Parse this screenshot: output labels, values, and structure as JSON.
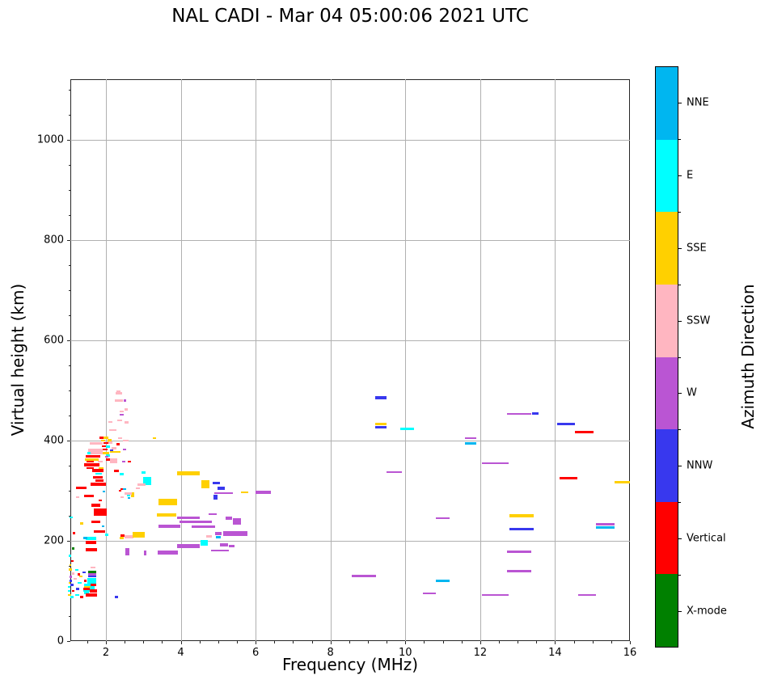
{
  "chart_data": {
    "type": "scatter",
    "title": "NAL CADI - Mar 04 05:00:06 2021 UTC",
    "xlabel": "Frequency (MHz)",
    "ylabel": "Virtual height (km)",
    "xlim": [
      1.05,
      16
    ],
    "ylim": [
      0,
      1121
    ],
    "xticks": [
      2,
      4,
      6,
      8,
      10,
      12,
      14,
      16
    ],
    "yticks": [
      0,
      200,
      400,
      600,
      800,
      1000
    ],
    "x_minor_step": 0.5,
    "y_minor_step": 50,
    "grid": true,
    "colorbar": {
      "label": "Azimuth Direction",
      "order": "top-to-bottom",
      "categories": [
        {
          "label": "NNE",
          "color": "#00b6f0"
        },
        {
          "label": "E",
          "color": "#00ffff"
        },
        {
          "label": "SSE",
          "color": "#ffd000"
        },
        {
          "label": "SSW",
          "color": "#ffb6c1"
        },
        {
          "label": "W",
          "color": "#ba55d3"
        },
        {
          "label": "NNW",
          "color": "#3838ee"
        },
        {
          "label": "Vertical",
          "color": "#ff0000"
        },
        {
          "label": "X-mode",
          "color": "#008000"
        }
      ]
    },
    "points_format": [
      "freq_MHz",
      "height_km",
      "direction",
      "width_MHz",
      "thickness_km"
    ],
    "points": [
      [
        8.9,
        130,
        "W",
        0.65,
        5
      ],
      [
        9.35,
        485,
        "NNW",
        0.3,
        7
      ],
      [
        9.35,
        433,
        "SSE",
        0.3,
        5
      ],
      [
        9.35,
        427,
        "NNW",
        0.3,
        5
      ],
      [
        10.05,
        424,
        "E",
        0.35,
        5
      ],
      [
        9.7,
        337,
        "W",
        0.4,
        4
      ],
      [
        10.65,
        95,
        "W",
        0.35,
        4
      ],
      [
        11.0,
        245,
        "W",
        0.38,
        4
      ],
      [
        11.0,
        120,
        "NNE",
        0.38,
        5
      ],
      [
        11.75,
        405,
        "W",
        0.3,
        4
      ],
      [
        11.75,
        394,
        "NNE",
        0.3,
        4
      ],
      [
        12.4,
        355,
        "W",
        0.72,
        4
      ],
      [
        12.4,
        92,
        "W",
        0.72,
        4
      ],
      [
        13.05,
        454,
        "W",
        0.65,
        3
      ],
      [
        13.48,
        454,
        "NNW",
        0.17,
        5
      ],
      [
        13.1,
        250,
        "SSE",
        0.65,
        5
      ],
      [
        13.1,
        224,
        "NNW",
        0.65,
        5
      ],
      [
        13.05,
        178,
        "W",
        0.65,
        5
      ],
      [
        13.05,
        140,
        "W",
        0.65,
        5
      ],
      [
        14.3,
        433,
        "NNW",
        0.48,
        6
      ],
      [
        14.78,
        417,
        "Vertical",
        0.48,
        6
      ],
      [
        14.35,
        325,
        "Vertical",
        0.48,
        5
      ],
      [
        14.85,
        92,
        "W",
        0.48,
        4
      ],
      [
        15.35,
        233,
        "W",
        0.5,
        5
      ],
      [
        15.35,
        227,
        "NNE",
        0.5,
        5
      ],
      [
        15.8,
        317,
        "SSE",
        0.4,
        5
      ],
      [
        3.1,
        320,
        "E",
        0.22,
        16
      ],
      [
        4.2,
        335,
        "SSE",
        0.6,
        9
      ],
      [
        4.65,
        313,
        "SSE",
        0.22,
        15
      ],
      [
        4.95,
        315,
        "NNW",
        0.2,
        4
      ],
      [
        5.08,
        305,
        "NNW",
        0.18,
        7
      ],
      [
        5.15,
        295,
        "W",
        0.5,
        4
      ],
      [
        5.7,
        297,
        "SSE",
        0.2,
        3
      ],
      [
        4.93,
        287,
        "NNW",
        0.12,
        9
      ],
      [
        6.2,
        297,
        "W",
        0.42,
        6
      ],
      [
        3.65,
        277,
        "SSE",
        0.5,
        13
      ],
      [
        3.62,
        252,
        "SSE",
        0.5,
        7
      ],
      [
        4.85,
        253,
        "W",
        0.2,
        4
      ],
      [
        4.2,
        246,
        "W",
        0.6,
        5
      ],
      [
        5.28,
        245,
        "W",
        0.18,
        7
      ],
      [
        5.5,
        238,
        "W",
        0.22,
        13
      ],
      [
        4.4,
        238,
        "W",
        0.85,
        6
      ],
      [
        3.7,
        229,
        "W",
        0.57,
        7
      ],
      [
        4.6,
        228,
        "W",
        0.62,
        5
      ],
      [
        5.0,
        214,
        "W",
        0.18,
        6
      ],
      [
        4.75,
        209,
        "SSW",
        0.16,
        4
      ],
      [
        5.0,
        207,
        "NNE",
        0.14,
        4
      ],
      [
        5.45,
        214,
        "W",
        0.65,
        10
      ],
      [
        4.62,
        196,
        "E",
        0.2,
        11
      ],
      [
        4.2,
        190,
        "W",
        0.6,
        8
      ],
      [
        5.15,
        192,
        "W",
        0.22,
        6
      ],
      [
        5.35,
        190,
        "W",
        0.15,
        5
      ],
      [
        3.65,
        176,
        "W",
        0.55,
        8
      ],
      [
        5.05,
        181,
        "W",
        0.48,
        4
      ],
      [
        3.3,
        405,
        "SSE",
        0.1,
        4
      ],
      [
        2.33,
        499,
        "SSW",
        0.1,
        3
      ],
      [
        2.35,
        494,
        "SSW",
        0.16,
        4
      ],
      [
        2.35,
        480,
        "SSW",
        0.22,
        4
      ],
      [
        2.51,
        480,
        "W",
        0.08,
        4
      ],
      [
        2.54,
        462,
        "SSW",
        0.1,
        4
      ],
      [
        2.42,
        458,
        "SSW",
        0.1,
        4
      ],
      [
        2.42,
        452,
        "W",
        0.1,
        4
      ],
      [
        2.37,
        440,
        "SSW",
        0.12,
        4
      ],
      [
        2.55,
        436,
        "SSW",
        0.12,
        4
      ],
      [
        2.12,
        437,
        "SSW",
        0.1,
        3
      ],
      [
        2.18,
        421,
        "SSW",
        0.2,
        4
      ],
      [
        2.38,
        405,
        "SSW",
        0.1,
        4
      ],
      [
        2.53,
        400,
        "SSW",
        0.14,
        4
      ],
      [
        2.1,
        400,
        "SSE",
        0.1,
        6
      ],
      [
        2.32,
        393,
        "Vertical",
        0.08,
        4
      ],
      [
        2.22,
        385,
        "SSW",
        0.12,
        4
      ],
      [
        2.5,
        382,
        "W",
        0.07,
        3
      ],
      [
        2.25,
        377,
        "SSE",
        0.3,
        4
      ],
      [
        2.05,
        370,
        "E",
        0.1,
        5
      ],
      [
        2.2,
        360,
        "SSW",
        0.2,
        10
      ],
      [
        2.48,
        358,
        "W",
        0.08,
        4
      ],
      [
        2.62,
        358,
        "Vertical",
        0.08,
        4
      ],
      [
        2.28,
        340,
        "Vertical",
        0.14,
        5
      ],
      [
        2.42,
        333,
        "E",
        0.12,
        4
      ],
      [
        2.85,
        305,
        "SSW",
        0.12,
        4
      ],
      [
        2.38,
        300,
        "Vertical",
        0.08,
        4
      ],
      [
        2.72,
        292,
        "SSE",
        0.08,
        9
      ],
      [
        2.6,
        290,
        "E",
        0.08,
        4
      ],
      [
        2.62,
        285,
        "NNE",
        0.06,
        3
      ],
      [
        2.43,
        287,
        "SSW",
        0.08,
        4
      ],
      [
        2.43,
        303,
        "Vertical",
        0.08,
        4
      ],
      [
        2.5,
        303,
        "NNE",
        0.08,
        4
      ],
      [
        1.87,
        344,
        "SSE",
        0.12,
        4
      ],
      [
        1.78,
        340,
        "Vertical",
        0.3,
        6
      ],
      [
        1.8,
        334,
        "E",
        0.18,
        4
      ],
      [
        1.78,
        327,
        "Vertical",
        0.25,
        5
      ],
      [
        1.82,
        320,
        "Vertical",
        0.22,
        5
      ],
      [
        1.8,
        313,
        "Vertical",
        0.4,
        6
      ],
      [
        1.55,
        290,
        "Vertical",
        0.25,
        5
      ],
      [
        2.6,
        295,
        "SSW",
        0.2,
        5
      ],
      [
        2.95,
        312,
        "SSW",
        0.2,
        6
      ],
      [
        3.0,
        337,
        "E",
        0.1,
        5
      ],
      [
        1.85,
        281,
        "Vertical",
        0.1,
        4
      ],
      [
        1.73,
        271,
        "Vertical",
        0.22,
        8
      ],
      [
        1.07,
        247,
        "E",
        0.07,
        4
      ],
      [
        1.35,
        235,
        "SSE",
        0.08,
        4
      ],
      [
        1.73,
        238,
        "Vertical",
        0.22,
        6
      ],
      [
        1.88,
        405,
        "Vertical",
        0.12,
        5
      ],
      [
        2.0,
        406,
        "SSE",
        0.12,
        5
      ],
      [
        1.92,
        400,
        "SSE",
        0.1,
        4
      ],
      [
        1.75,
        395,
        "SSW",
        0.35,
        5
      ],
      [
        2.0,
        395,
        "Vertical",
        0.14,
        4
      ],
      [
        2.12,
        396,
        "SSW",
        0.1,
        4
      ],
      [
        2.05,
        388,
        "E",
        0.1,
        4
      ],
      [
        1.95,
        389,
        "Vertical",
        0.1,
        4
      ],
      [
        1.72,
        378,
        "SSW",
        0.4,
        12
      ],
      [
        1.98,
        382,
        "Vertical",
        0.12,
        4
      ],
      [
        2.15,
        380,
        "NNW",
        0.07,
        3
      ],
      [
        2.0,
        375,
        "SSE",
        0.18,
        4
      ],
      [
        1.55,
        375,
        "E",
        0.1,
        4
      ],
      [
        1.65,
        368,
        "Vertical",
        0.4,
        5
      ],
      [
        2.02,
        368,
        "W",
        0.08,
        3
      ],
      [
        1.62,
        362,
        "SSE",
        0.38,
        4
      ],
      [
        2.05,
        362,
        "Vertical",
        0.1,
        4
      ],
      [
        1.58,
        358,
        "Vertical",
        0.2,
        4
      ],
      [
        1.85,
        358,
        "SSW",
        0.14,
        4
      ],
      [
        1.62,
        352,
        "Vertical",
        0.42,
        7
      ],
      [
        1.58,
        345,
        "Vertical",
        0.2,
        4
      ],
      [
        1.35,
        305,
        "Vertical",
        0.28,
        5
      ],
      [
        1.25,
        287,
        "SSW",
        0.08,
        4
      ],
      [
        1.95,
        298,
        "NNE",
        0.08,
        4
      ],
      [
        1.85,
        257,
        "Vertical",
        0.35,
        14
      ],
      [
        1.92,
        229,
        "NNE",
        0.07,
        4
      ],
      [
        1.15,
        215,
        "Vertical",
        0.06,
        4
      ],
      [
        1.82,
        218,
        "Vertical",
        0.3,
        5
      ],
      [
        2.02,
        212,
        "E",
        0.08,
        4
      ],
      [
        2.45,
        211,
        "Vertical",
        0.1,
        5
      ],
      [
        2.42,
        206,
        "SSE",
        0.1,
        4
      ],
      [
        2.62,
        208,
        "SSW",
        0.25,
        5
      ],
      [
        2.88,
        212,
        "SSE",
        0.33,
        12
      ],
      [
        1.6,
        205,
        "E",
        0.3,
        7
      ],
      [
        1.45,
        205,
        "NNE",
        0.12,
        5
      ],
      [
        1.6,
        197,
        "Vertical",
        0.28,
        6
      ],
      [
        1.62,
        182,
        "Vertical",
        0.3,
        6
      ],
      [
        2.57,
        178,
        "W",
        0.1,
        14
      ],
      [
        3.05,
        176,
        "W",
        0.08,
        10
      ],
      [
        2.28,
        88,
        "NNW",
        0.08,
        4
      ],
      [
        1.13,
        185,
        "X-mode",
        0.07,
        4
      ],
      [
        1.65,
        147,
        "SSW",
        0.12,
        4
      ],
      [
        1.05,
        143,
        "SSE",
        0.1,
        4
      ],
      [
        1.22,
        142,
        "E",
        0.08,
        4
      ],
      [
        1.63,
        138,
        "X-mode",
        0.22,
        5
      ],
      [
        1.42,
        137,
        "NNW",
        0.08,
        4
      ],
      [
        1.63,
        133,
        "W",
        0.22,
        4
      ],
      [
        1.28,
        133,
        "Vertical",
        0.08,
        4
      ],
      [
        1.63,
        129,
        "NNW",
        0.22,
        4
      ],
      [
        1.33,
        129,
        "SSE",
        0.08,
        4
      ],
      [
        1.63,
        124,
        "E",
        0.24,
        5
      ],
      [
        1.18,
        124,
        "SSW",
        0.08,
        4
      ],
      [
        1.63,
        120,
        "E",
        0.24,
        4
      ],
      [
        1.06,
        120,
        "NNW",
        0.06,
        4
      ],
      [
        1.45,
        120,
        "Vertical",
        0.08,
        4
      ],
      [
        1.63,
        116,
        "E",
        0.24,
        4
      ],
      [
        1.03,
        116,
        "SSE",
        0.06,
        4
      ],
      [
        1.3,
        116,
        "E",
        0.1,
        4
      ],
      [
        1.52,
        112,
        "E",
        0.2,
        4
      ],
      [
        1.67,
        112,
        "Vertical",
        0.16,
        4
      ],
      [
        1.1,
        112,
        "NNW",
        0.08,
        4
      ],
      [
        1.62,
        108,
        "E",
        0.16,
        4
      ],
      [
        1.5,
        108,
        "SSE",
        0.18,
        4
      ],
      [
        1.02,
        108,
        "E",
        0.08,
        4
      ],
      [
        1.48,
        104,
        "Vertical",
        0.18,
        4
      ],
      [
        1.63,
        104,
        "E",
        0.12,
        4
      ],
      [
        1.25,
        104,
        "NNW",
        0.08,
        4
      ],
      [
        1.02,
        100,
        "E",
        0.08,
        4
      ],
      [
        1.12,
        100,
        "Vertical",
        0.06,
        4
      ],
      [
        1.48,
        100,
        "E",
        0.18,
        4
      ],
      [
        1.66,
        100,
        "Vertical",
        0.2,
        5
      ],
      [
        1.48,
        96,
        "E",
        0.14,
        4
      ],
      [
        1.62,
        92,
        "Vertical",
        0.3,
        5
      ],
      [
        1.03,
        92,
        "SSE",
        0.08,
        4
      ],
      [
        1.23,
        92,
        "E",
        0.1,
        4
      ],
      [
        1.1,
        88,
        "E",
        0.08,
        4
      ],
      [
        1.35,
        88,
        "Vertical",
        0.08,
        4
      ],
      [
        1.04,
        170,
        "E",
        0.06,
        4
      ],
      [
        1.1,
        160,
        "Vertical",
        0.06,
        4
      ],
      [
        1.05,
        152,
        "SSE",
        0.06,
        4
      ],
      [
        1.12,
        135,
        "SSW",
        0.06,
        4
      ],
      [
        1.06,
        128,
        "W",
        0.06,
        4
      ]
    ]
  }
}
